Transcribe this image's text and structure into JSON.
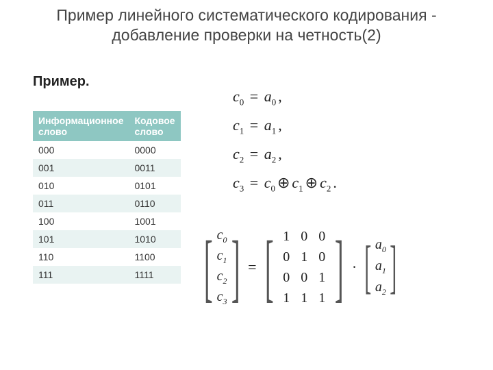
{
  "title": "Пример линейного систематического кодирования - добавление проверки на четность(2)",
  "example_label": "Пример.",
  "table": {
    "header_bg": "#8ec7c2",
    "row_even_bg": "#e9f3f2",
    "row_odd_bg": "#ffffff",
    "columns": [
      "Информационное слово",
      "Кодовое слово"
    ],
    "col_widths": [
      "52%",
      "48%"
    ],
    "rows": [
      [
        "000",
        "0000"
      ],
      [
        "001",
        "0011"
      ],
      [
        "010",
        "0101"
      ],
      [
        "011",
        "0110"
      ],
      [
        "100",
        "1001"
      ],
      [
        "101",
        "1010"
      ],
      [
        "110",
        "1100"
      ],
      [
        "111",
        "1111"
      ]
    ]
  },
  "equations": {
    "lines": [
      {
        "lhs_var": "c",
        "lhs_sub": "0",
        "rhs": [
          {
            "var": "a",
            "sub": "0"
          }
        ],
        "tail": ","
      },
      {
        "lhs_var": "c",
        "lhs_sub": "1",
        "rhs": [
          {
            "var": "a",
            "sub": "1"
          }
        ],
        "tail": ","
      },
      {
        "lhs_var": "c",
        "lhs_sub": "2",
        "rhs": [
          {
            "var": "a",
            "sub": "2"
          }
        ],
        "tail": ","
      },
      {
        "lhs_var": "c",
        "lhs_sub": "3",
        "rhs": [
          {
            "var": "c",
            "sub": "0"
          },
          {
            "op": "⊕"
          },
          {
            "var": "c",
            "sub": "1"
          },
          {
            "op": "⊕"
          },
          {
            "var": "c",
            "sub": "2"
          }
        ],
        "tail": "."
      }
    ]
  },
  "matrix": {
    "c_vec": [
      [
        "c",
        "0"
      ],
      [
        "c",
        "1"
      ],
      [
        "c",
        "2"
      ],
      [
        "c",
        "3"
      ]
    ],
    "G": [
      [
        "1",
        "0",
        "0"
      ],
      [
        "0",
        "1",
        "0"
      ],
      [
        "0",
        "0",
        "1"
      ],
      [
        "1",
        "1",
        "1"
      ]
    ],
    "a_vec": [
      [
        "a",
        "0"
      ],
      [
        "a",
        "1"
      ],
      [
        "a",
        "2"
      ]
    ],
    "eq": "=",
    "dot": "·"
  }
}
